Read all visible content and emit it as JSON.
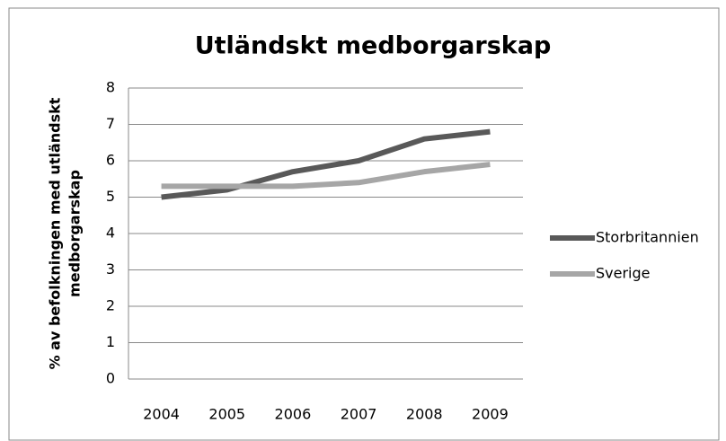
{
  "chart_data": {
    "type": "line",
    "title": "Utländskt medborgarskap",
    "ylabel": [
      "% av befolkningen med utländskt",
      "medborgarskap"
    ],
    "categories": [
      "2004",
      "2005",
      "2006",
      "2007",
      "2008",
      "2009"
    ],
    "series": [
      {
        "name": "Storbritannien",
        "color": "#595959",
        "values": [
          5.0,
          5.2,
          5.7,
          6.0,
          6.6,
          6.8
        ]
      },
      {
        "name": "Sverige",
        "color": "#a6a6a6",
        "values": [
          5.3,
          5.3,
          5.3,
          5.4,
          5.7,
          5.9
        ]
      }
    ],
    "ylim": [
      0,
      8
    ],
    "yticks": [
      0,
      1,
      2,
      3,
      4,
      5,
      6,
      7,
      8
    ],
    "grid": true,
    "legend": "right"
  }
}
